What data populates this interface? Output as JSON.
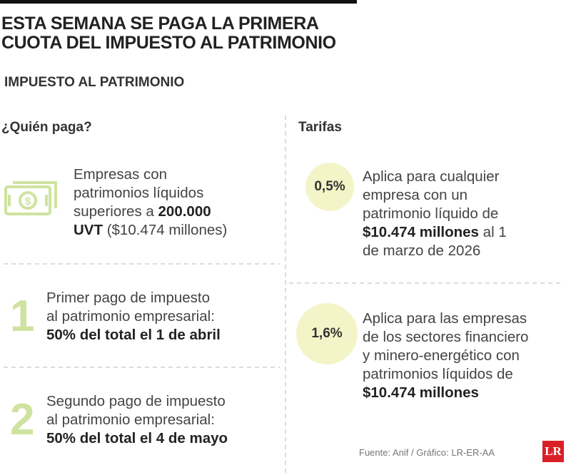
{
  "header": {
    "title_lines": [
      "ESTA SEMANA SE PAGA LA PRIMERA",
      "CUOTA DEL IMPUESTO AL PATRIMONIO"
    ],
    "subtitle": "IMPUESTO AL PATRIMONIO"
  },
  "left": {
    "heading": "¿Quién paga?",
    "items": [
      {
        "lines": [
          [
            {
              "text": "Empresas con"
            }
          ],
          [
            {
              "text": "patrimonios líquidos"
            }
          ],
          [
            {
              "text": "superiores a "
            },
            {
              "text": "200.000",
              "bold": true
            }
          ],
          [
            {
              "text": "UVT",
              "bold": true
            },
            {
              "text": " ($10.474 millones)"
            }
          ]
        ]
      },
      {
        "number": "1",
        "lines": [
          [
            {
              "text": "Primer pago de impuesto"
            }
          ],
          [
            {
              "text": "al patrimonio empresarial:"
            }
          ],
          [
            {
              "text": "50% del total el 1 de abril",
              "bold": true
            }
          ]
        ]
      },
      {
        "number": "2",
        "lines": [
          [
            {
              "text": "Segundo pago de impuesto"
            }
          ],
          [
            {
              "text": "al patrimonio empresarial:"
            }
          ],
          [
            {
              "text": "50% del total el 4 de mayo",
              "bold": true
            }
          ]
        ]
      }
    ]
  },
  "right": {
    "heading": "Tarifas",
    "items": [
      {
        "rate": "0,5%",
        "lines": [
          [
            {
              "text": "Aplica para cualquier"
            }
          ],
          [
            {
              "text": "empresa con un"
            }
          ],
          [
            {
              "text": "patrimonio líquido de"
            }
          ],
          [
            {
              "text": "$10.474 millones",
              "bold": true
            },
            {
              "text": " al 1"
            }
          ],
          [
            {
              "text": "de marzo de 2026"
            }
          ]
        ]
      },
      {
        "rate": "1,6%",
        "lines": [
          [
            {
              "text": "Aplica para las empresas"
            }
          ],
          [
            {
              "text": "de los sectores financiero"
            }
          ],
          [
            {
              "text": "y minero-energético con"
            }
          ],
          [
            {
              "text": "patrimonios líquidos de"
            }
          ],
          [
            {
              "text": "$10.474 millones",
              "bold": true
            }
          ]
        ]
      }
    ]
  },
  "footer": {
    "source": "Fuente: Anif / Gráfico: LR-ER-AA",
    "logo": "LR"
  }
}
